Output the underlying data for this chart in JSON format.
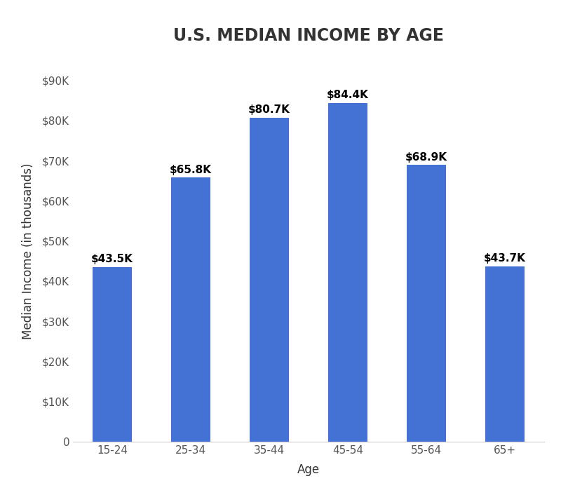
{
  "title": "U.S. MEDIAN INCOME BY AGE",
  "categories": [
    "15-24",
    "25-34",
    "35-44",
    "45-54",
    "55-64",
    "65+"
  ],
  "values": [
    43500,
    65800,
    80700,
    84400,
    68900,
    43700
  ],
  "labels": [
    "$43.5K",
    "$65.8K",
    "$80.7K",
    "$84.4K",
    "$68.9K",
    "$43.7K"
  ],
  "bar_color": "#4472D4",
  "xlabel": "Age",
  "ylabel": "Median Income (in thousands)",
  "ylim": [
    0,
    95000
  ],
  "yticks": [
    0,
    10000,
    20000,
    30000,
    40000,
    50000,
    60000,
    70000,
    80000,
    90000
  ],
  "ytick_labels": [
    "0",
    "$10K",
    "$20K",
    "$30K",
    "$40K",
    "$50K",
    "$60K",
    "$70K",
    "$80K",
    "$90K"
  ],
  "background_color": "#ffffff",
  "title_fontsize": 17,
  "label_fontsize": 12,
  "tick_fontsize": 11,
  "bar_label_fontsize": 11
}
